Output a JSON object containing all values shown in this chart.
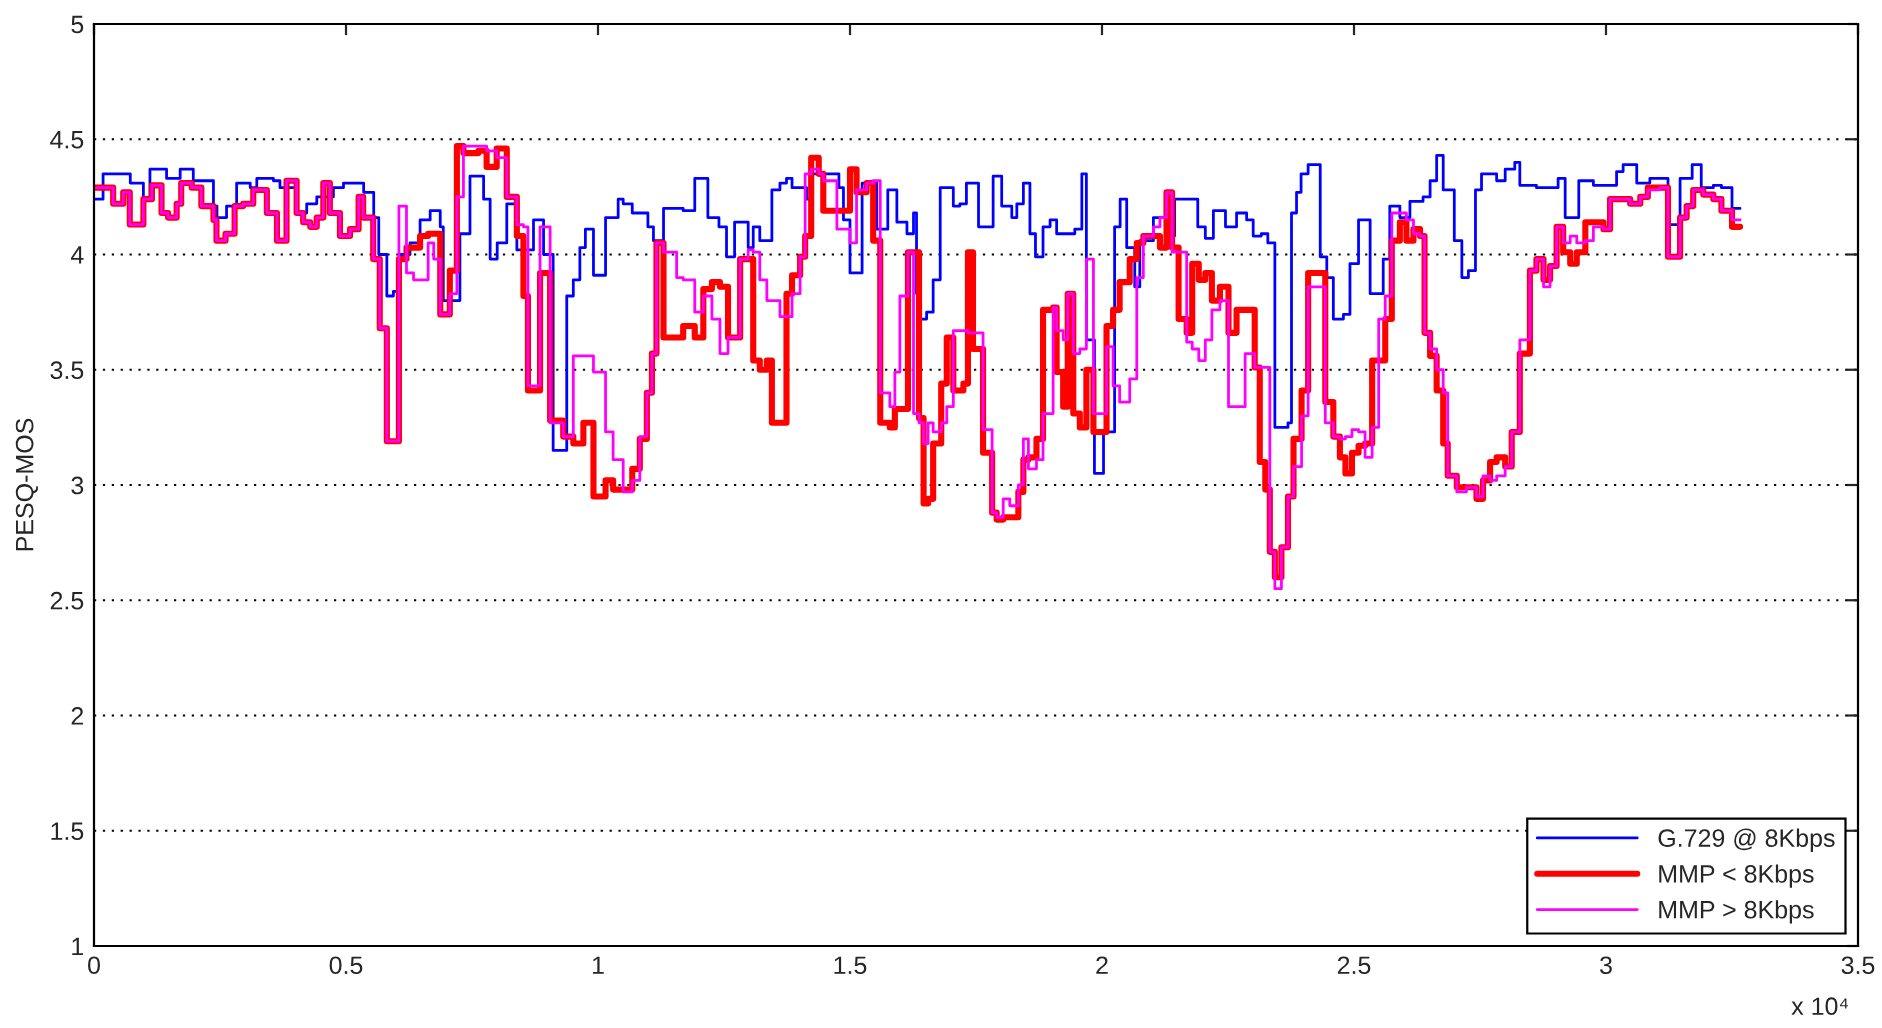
{
  "chart_data": {
    "type": "step",
    "ylabel": "PESQ-MOS",
    "annotations": [
      "x 10⁴"
    ],
    "xlim": [
      0,
      3.5
    ],
    "xticks": [
      0,
      0.5,
      1,
      1.5,
      2,
      2.5,
      3,
      3.5
    ],
    "ylim": [
      1,
      5
    ],
    "yticks": [
      1,
      1.5,
      2,
      2.5,
      3,
      3.5,
      4,
      4.5,
      5
    ],
    "grid": "y",
    "legend": "bottom right",
    "line_style": "solid",
    "marker": "none",
    "series": [
      {
        "name": "G.729 @ 8Kbps",
        "color": "#0000ff",
        "x": [
          0,
          0.018,
          0.072,
          0.098,
          0.111,
          0.144,
          0.171,
          0.197,
          0.237,
          0.244,
          0.263,
          0.283,
          0.31,
          0.323,
          0.356,
          0.369,
          0.402,
          0.422,
          0.442,
          0.475,
          0.495,
          0.535,
          0.555,
          0.565,
          0.581,
          0.594,
          0.607,
          0.627,
          0.647,
          0.667,
          0.687,
          0.693,
          0.726,
          0.746,
          0.773,
          0.786,
          0.8,
          0.819,
          0.839,
          0.872,
          0.892,
          0.911,
          0.938,
          0.951,
          0.964,
          0.975,
          0.991,
          1.015,
          1.04,
          1.05,
          1.068,
          1.099,
          1.11,
          1.13,
          1.169,
          1.192,
          1.218,
          1.24,
          1.255,
          1.271,
          1.298,
          1.308,
          1.321,
          1.345,
          1.361,
          1.374,
          1.385,
          1.414,
          1.421,
          1.478,
          1.487,
          1.5,
          1.524,
          1.553,
          1.575,
          1.593,
          1.613,
          1.626,
          1.632,
          1.639,
          1.652,
          1.665,
          1.679,
          1.705,
          1.718,
          1.731,
          1.755,
          1.784,
          1.801,
          1.821,
          1.831,
          1.844,
          1.857,
          1.868,
          1.883,
          1.897,
          1.91,
          1.946,
          1.96,
          1.969,
          1.985,
          2.003,
          2.025,
          2.036,
          2.049,
          2.065,
          2.075,
          2.102,
          2.128,
          2.144,
          2.168,
          2.19,
          2.205,
          2.221,
          2.245,
          2.267,
          2.287,
          2.3,
          2.316,
          2.329,
          2.343,
          2.369,
          2.376,
          2.386,
          2.395,
          2.409,
          2.433,
          2.446,
          2.459,
          2.479,
          2.492,
          2.509,
          2.532,
          2.558,
          2.571,
          2.591,
          2.611,
          2.637,
          2.651,
          2.664,
          2.677,
          2.699,
          2.714,
          2.727,
          2.741,
          2.753,
          2.783,
          2.8,
          2.819,
          2.829,
          2.862,
          2.905,
          2.919,
          2.946,
          2.975,
          3.021,
          3.034,
          3.061,
          3.087,
          3.123,
          3.147,
          3.171,
          3.189,
          3.213,
          3.229,
          3.25,
          3.266
        ],
        "values": [
          4.24,
          4.35,
          4.31,
          4.24,
          4.37,
          4.33,
          4.37,
          4.32,
          4.21,
          4.16,
          4.21,
          4.31,
          4.29,
          4.33,
          4.32,
          4.29,
          4.18,
          4.22,
          4.25,
          4.29,
          4.31,
          4.27,
          4.16,
          4.0,
          3.82,
          3.84,
          4.0,
          4.05,
          4.15,
          4.19,
          4.12,
          3.8,
          4.09,
          4.34,
          4.24,
          3.98,
          4.05,
          4.22,
          4.02,
          4.15,
          4.0,
          3.15,
          3.82,
          3.89,
          4.03,
          4.11,
          3.91,
          4.16,
          4.24,
          4.22,
          4.18,
          4.12,
          4.06,
          4.2,
          4.19,
          4.33,
          4.16,
          4.12,
          3.99,
          4.14,
          4.03,
          4.12,
          4.06,
          4.28,
          4.31,
          4.33,
          4.29,
          4.24,
          4.35,
          4.29,
          4.15,
          3.92,
          4.31,
          4.11,
          4.28,
          4.14,
          4.09,
          4.18,
          3.83,
          3.72,
          3.75,
          3.89,
          4.29,
          4.21,
          4.22,
          4.31,
          4.12,
          4.34,
          4.21,
          4.16,
          4.22,
          4.31,
          4.09,
          3.99,
          4.12,
          4.15,
          4.09,
          4.11,
          4.35,
          3.63,
          3.05,
          3.23,
          4.12,
          4.24,
          4.03,
          3.86,
          4.06,
          4.16,
          4.08,
          4.24,
          4.24,
          4.12,
          4.07,
          4.19,
          4.12,
          4.18,
          4.15,
          4.08,
          4.09,
          4.05,
          3.25,
          3.27,
          4.18,
          4.27,
          4.35,
          4.39,
          3.99,
          3.9,
          3.72,
          3.74,
          3.96,
          4.15,
          3.83,
          3.98,
          4.21,
          4.16,
          4.23,
          4.25,
          4.32,
          4.43,
          4.28,
          4.06,
          3.9,
          3.93,
          4.28,
          4.35,
          4.32,
          4.37,
          4.4,
          4.3,
          4.29,
          4.33,
          4.16,
          4.32,
          4.3,
          4.36,
          4.39,
          4.31,
          4.33,
          4.13,
          4.33,
          4.39,
          4.29,
          4.3,
          4.29,
          4.2,
          4.2
        ]
      },
      {
        "name": "MMP < 8Kbps",
        "color": "#ff0000",
        "x": [
          0,
          0.038,
          0.058,
          0.071,
          0.098,
          0.115,
          0.134,
          0.147,
          0.164,
          0.173,
          0.194,
          0.213,
          0.237,
          0.243,
          0.261,
          0.279,
          0.296,
          0.316,
          0.343,
          0.363,
          0.382,
          0.402,
          0.415,
          0.429,
          0.442,
          0.455,
          0.468,
          0.488,
          0.508,
          0.525,
          0.534,
          0.554,
          0.567,
          0.581,
          0.605,
          0.62,
          0.634,
          0.647,
          0.663,
          0.674,
          0.687,
          0.706,
          0.72,
          0.733,
          0.763,
          0.779,
          0.799,
          0.819,
          0.839,
          0.852,
          0.861,
          0.885,
          0.905,
          0.931,
          0.951,
          0.971,
          0.991,
          1.015,
          1.03,
          1.05,
          1.068,
          1.083,
          1.097,
          1.107,
          1.116,
          1.13,
          1.156,
          1.169,
          1.192,
          1.209,
          1.226,
          1.242,
          1.258,
          1.282,
          1.298,
          1.308,
          1.321,
          1.335,
          1.345,
          1.361,
          1.374,
          1.385,
          1.401,
          1.411,
          1.423,
          1.438,
          1.447,
          1.474,
          1.5,
          1.513,
          1.533,
          1.546,
          1.56,
          1.579,
          1.589,
          1.599,
          1.615,
          1.626,
          1.637,
          1.646,
          1.655,
          1.665,
          1.681,
          1.692,
          1.705,
          1.725,
          1.734,
          1.744,
          1.764,
          1.782,
          1.791,
          1.804,
          1.817,
          1.834,
          1.844,
          1.854,
          1.87,
          1.883,
          1.903,
          1.91,
          1.923,
          1.932,
          1.943,
          1.956,
          1.969,
          1.983,
          2.009,
          2.022,
          2.035,
          2.055,
          2.069,
          2.082,
          2.102,
          2.115,
          2.128,
          2.139,
          2.152,
          2.168,
          2.179,
          2.192,
          2.205,
          2.218,
          2.234,
          2.251,
          2.267,
          2.284,
          2.303,
          2.313,
          2.324,
          2.333,
          2.343,
          2.356,
          2.369,
          2.38,
          2.396,
          2.409,
          2.443,
          2.459,
          2.472,
          2.483,
          2.496,
          2.509,
          2.522,
          2.536,
          2.549,
          2.562,
          2.575,
          2.591,
          2.604,
          2.618,
          2.631,
          2.64,
          2.651,
          2.664,
          2.677,
          2.686,
          2.704,
          2.723,
          2.743,
          2.756,
          2.77,
          2.783,
          2.8,
          2.813,
          2.829,
          2.849,
          2.862,
          2.876,
          2.889,
          2.902,
          2.915,
          2.929,
          2.942,
          2.959,
          2.975,
          2.995,
          3.008,
          3.028,
          3.048,
          3.068,
          3.083,
          3.107,
          3.123,
          3.147,
          3.16,
          3.173,
          3.193,
          3.213,
          3.229,
          3.25,
          3.266
        ],
        "values": [
          4.29,
          4.22,
          4.27,
          4.13,
          4.24,
          4.3,
          4.18,
          4.16,
          4.22,
          4.31,
          4.29,
          4.21,
          4.15,
          4.06,
          4.09,
          4.21,
          4.22,
          4.28,
          4.18,
          4.06,
          4.32,
          4.18,
          4.14,
          4.12,
          4.16,
          4.31,
          4.18,
          4.08,
          4.11,
          4.25,
          4.16,
          3.98,
          3.68,
          3.19,
          3.98,
          4.03,
          4.03,
          4.08,
          4.09,
          4.09,
          3.74,
          3.93,
          4.47,
          4.44,
          4.45,
          4.38,
          4.46,
          4.25,
          4.08,
          3.82,
          3.41,
          3.92,
          3.28,
          3.21,
          3.18,
          3.27,
          2.95,
          3.02,
          2.98,
          2.98,
          3.07,
          3.2,
          3.4,
          3.57,
          4.05,
          3.64,
          3.64,
          3.69,
          3.64,
          3.85,
          3.88,
          3.86,
          3.64,
          3.98,
          3.98,
          3.54,
          3.5,
          3.54,
          3.27,
          3.27,
          3.83,
          3.91,
          3.99,
          4.08,
          4.42,
          4.35,
          4.19,
          4.19,
          4.37,
          4.27,
          4.31,
          4.06,
          3.27,
          3.25,
          3.33,
          3.33,
          4.01,
          4.01,
          3.29,
          2.92,
          2.94,
          3.18,
          3.44,
          3.64,
          3.41,
          3.44,
          4.01,
          3.59,
          3.14,
          2.88,
          2.85,
          2.86,
          2.86,
          2.97,
          3.11,
          3.12,
          3.2,
          3.76,
          3.77,
          3.49,
          3.34,
          3.83,
          3.31,
          3.25,
          3.5,
          3.23,
          3.69,
          3.76,
          3.88,
          3.98,
          4.05,
          4.08,
          4.08,
          4.03,
          4.27,
          4.03,
          3.72,
          3.66,
          3.96,
          3.89,
          3.92,
          3.8,
          3.86,
          3.66,
          3.76,
          3.76,
          3.51,
          3.1,
          2.98,
          2.71,
          2.6,
          2.73,
          2.95,
          3.2,
          3.41,
          3.92,
          3.36,
          3.21,
          3.12,
          3.05,
          3.14,
          3.17,
          3.18,
          3.54,
          3.54,
          3.72,
          4.06,
          4.14,
          4.06,
          4.11,
          4.08,
          3.66,
          3.56,
          3.41,
          3.18,
          3.04,
          2.99,
          2.99,
          2.94,
          3.02,
          3.1,
          3.12,
          3.08,
          3.23,
          3.57,
          3.93,
          3.98,
          3.89,
          3.95,
          4.12,
          4.01,
          3.96,
          4.01,
          4.14,
          4.14,
          4.11,
          4.24,
          4.24,
          4.22,
          4.25,
          4.29,
          4.29,
          3.99,
          4.16,
          4.21,
          4.28,
          4.26,
          4.24,
          4.19,
          4.12,
          4.12
        ]
      },
      {
        "name": "MMP > 8Kbps",
        "color": "#ff00ff",
        "x": [
          0,
          0.038,
          0.058,
          0.071,
          0.098,
          0.115,
          0.134,
          0.147,
          0.164,
          0.173,
          0.194,
          0.213,
          0.237,
          0.243,
          0.261,
          0.279,
          0.296,
          0.316,
          0.343,
          0.363,
          0.382,
          0.402,
          0.415,
          0.429,
          0.442,
          0.455,
          0.468,
          0.488,
          0.508,
          0.525,
          0.534,
          0.554,
          0.567,
          0.581,
          0.605,
          0.62,
          0.634,
          0.647,
          0.663,
          0.674,
          0.687,
          0.706,
          0.72,
          0.733,
          0.763,
          0.779,
          0.799,
          0.819,
          0.839,
          0.852,
          0.861,
          0.885,
          0.905,
          0.931,
          0.951,
          0.971,
          0.991,
          1.015,
          1.03,
          1.05,
          1.068,
          1.083,
          1.097,
          1.107,
          1.116,
          1.13,
          1.156,
          1.169,
          1.192,
          1.209,
          1.226,
          1.242,
          1.258,
          1.282,
          1.298,
          1.308,
          1.321,
          1.335,
          1.345,
          1.361,
          1.374,
          1.385,
          1.401,
          1.411,
          1.423,
          1.438,
          1.447,
          1.474,
          1.5,
          1.513,
          1.533,
          1.546,
          1.56,
          1.579,
          1.589,
          1.599,
          1.615,
          1.626,
          1.637,
          1.646,
          1.655,
          1.665,
          1.681,
          1.692,
          1.705,
          1.725,
          1.734,
          1.744,
          1.764,
          1.782,
          1.791,
          1.804,
          1.817,
          1.834,
          1.844,
          1.854,
          1.87,
          1.883,
          1.903,
          1.91,
          1.923,
          1.932,
          1.943,
          1.956,
          1.969,
          1.983,
          2.009,
          2.022,
          2.035,
          2.055,
          2.069,
          2.082,
          2.102,
          2.115,
          2.128,
          2.139,
          2.152,
          2.168,
          2.179,
          2.192,
          2.205,
          2.218,
          2.234,
          2.251,
          2.267,
          2.284,
          2.303,
          2.313,
          2.324,
          2.333,
          2.343,
          2.356,
          2.369,
          2.38,
          2.396,
          2.409,
          2.443,
          2.459,
          2.472,
          2.483,
          2.496,
          2.509,
          2.522,
          2.536,
          2.549,
          2.562,
          2.575,
          2.591,
          2.604,
          2.618,
          2.631,
          2.64,
          2.651,
          2.664,
          2.677,
          2.686,
          2.704,
          2.723,
          2.743,
          2.756,
          2.77,
          2.783,
          2.8,
          2.813,
          2.829,
          2.849,
          2.862,
          2.876,
          2.889,
          2.902,
          2.915,
          2.929,
          2.942,
          2.959,
          2.975,
          2.995,
          3.008,
          3.028,
          3.048,
          3.068,
          3.083,
          3.107,
          3.123,
          3.147,
          3.16,
          3.173,
          3.193,
          3.213,
          3.229,
          3.25,
          3.266
        ],
        "values": [
          4.29,
          4.22,
          4.27,
          4.13,
          4.24,
          4.3,
          4.18,
          4.16,
          4.22,
          4.31,
          4.29,
          4.21,
          4.15,
          4.06,
          4.09,
          4.21,
          4.22,
          4.28,
          4.18,
          4.06,
          4.32,
          4.18,
          4.14,
          4.12,
          4.16,
          4.31,
          4.18,
          4.08,
          4.11,
          4.25,
          4.16,
          3.98,
          3.68,
          3.19,
          4.21,
          3.92,
          3.89,
          3.89,
          4.05,
          3.98,
          3.74,
          3.83,
          4.25,
          4.47,
          4.47,
          4.45,
          4.42,
          4.25,
          4.13,
          4.12,
          3.43,
          4.12,
          3.27,
          3.21,
          3.56,
          3.56,
          3.49,
          3.23,
          3.11,
          2.97,
          3.02,
          3.21,
          3.4,
          3.57,
          4.05,
          4.01,
          3.9,
          3.89,
          3.75,
          3.82,
          3.72,
          3.57,
          3.64,
          3.98,
          4.02,
          4.01,
          3.89,
          3.8,
          3.8,
          3.73,
          3.73,
          3.83,
          3.99,
          4.35,
          4.37,
          4.35,
          4.32,
          4.11,
          4.05,
          4.28,
          4.31,
          4.32,
          3.4,
          3.34,
          3.49,
          3.82,
          4.01,
          3.31,
          3.27,
          3.18,
          3.27,
          3.23,
          3.27,
          3.34,
          3.67,
          3.67,
          3.66,
          3.66,
          3.24,
          2.88,
          2.86,
          2.94,
          2.91,
          3.0,
          3.2,
          3.07,
          3.11,
          3.31,
          3.77,
          3.67,
          3.63,
          3.83,
          3.57,
          3.59,
          3.98,
          3.31,
          3.6,
          3.43,
          3.36,
          3.46,
          3.9,
          4.08,
          4.12,
          4.16,
          4.27,
          4.01,
          4.01,
          3.62,
          3.59,
          3.54,
          3.63,
          3.76,
          3.8,
          3.34,
          3.34,
          3.57,
          3.51,
          3.51,
          3.51,
          2.71,
          2.55,
          2.73,
          2.95,
          3.08,
          3.3,
          3.86,
          3.27,
          3.21,
          3.2,
          3.21,
          3.24,
          3.23,
          3.12,
          3.25,
          3.72,
          3.82,
          4.18,
          4.18,
          4.15,
          4.09,
          4.08,
          3.66,
          3.59,
          3.5,
          3.4,
          3.04,
          2.97,
          2.99,
          2.95,
          3.04,
          3.02,
          3.04,
          3.08,
          3.23,
          3.63,
          3.93,
          3.98,
          3.86,
          3.95,
          4.12,
          4.05,
          4.08,
          4.05,
          4.06,
          4.12,
          4.11,
          4.24,
          4.24,
          4.22,
          4.25,
          4.28,
          4.29,
          3.99,
          4.16,
          4.21,
          4.28,
          4.26,
          4.24,
          4.19,
          4.15,
          4.15
        ]
      }
    ]
  }
}
